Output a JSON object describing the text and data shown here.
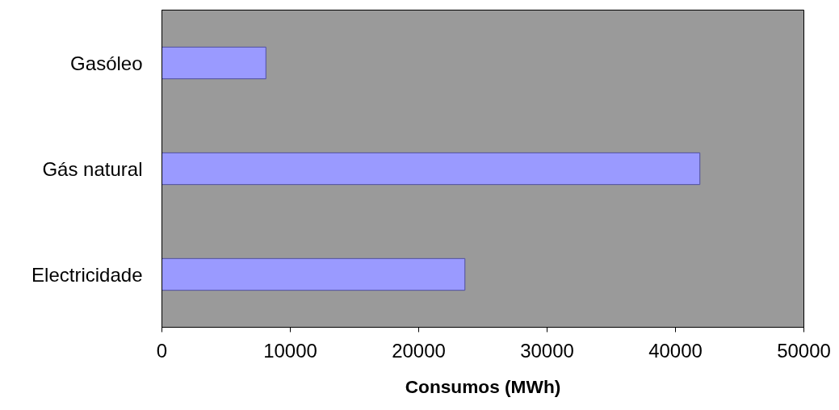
{
  "chart_data": {
    "type": "bar",
    "orientation": "horizontal",
    "xlabel": "Consumos (MWh)",
    "categories": [
      "Gasóleo",
      "Gás natural",
      "Electricidade"
    ],
    "values": [
      8100,
      41900,
      23600
    ],
    "color": "#9a9aff",
    "xlim": [
      0,
      50000
    ],
    "xticks": [
      0,
      10000,
      20000,
      30000,
      40000,
      50000
    ],
    "grid": false
  }
}
